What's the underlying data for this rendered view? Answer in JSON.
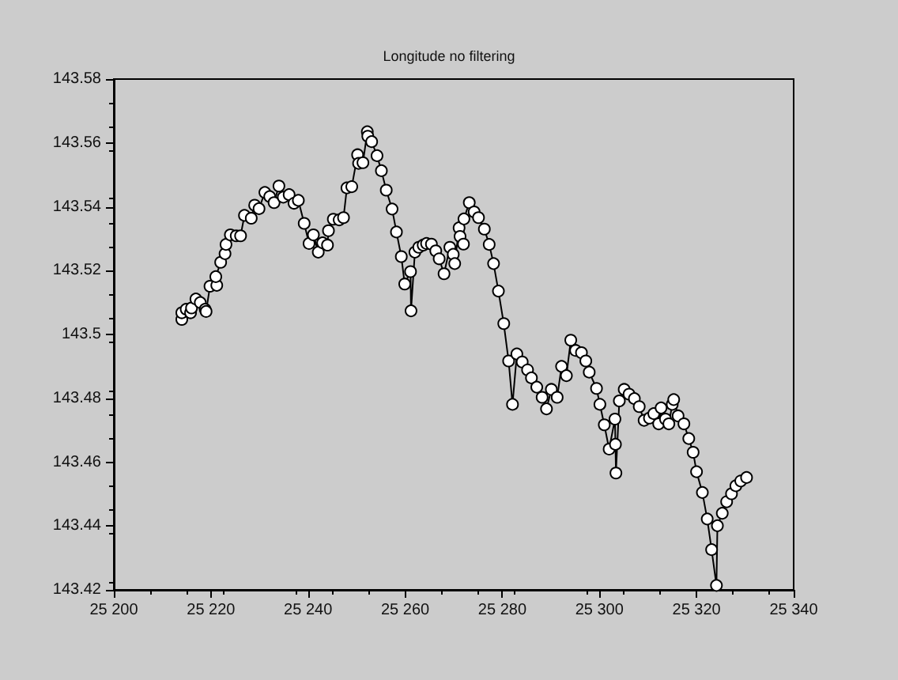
{
  "chart_data": {
    "type": "line",
    "title": "Longitude no filtering",
    "xlim": [
      25200,
      25340
    ],
    "xticks": [
      {
        "value": 25200,
        "label": "25 200"
      },
      {
        "value": 25220,
        "label": "25 220"
      },
      {
        "value": 25240,
        "label": "25 240"
      },
      {
        "value": 25260,
        "label": "25 260"
      },
      {
        "value": 25280,
        "label": "25 280"
      },
      {
        "value": 25300,
        "label": "25 300"
      },
      {
        "value": 25320,
        "label": "25 320"
      },
      {
        "value": 25340,
        "label": "25 340"
      }
    ],
    "ylim": [
      143.42,
      143.58
    ],
    "yticks": [
      143.42,
      143.44,
      143.46,
      143.48,
      143.5,
      143.52,
      143.54,
      143.56,
      143.58
    ],
    "grid": false,
    "marker": "circle",
    "line_style": "solid",
    "series": [
      {
        "color": "#000000",
        "x": [
          25214.0,
          25214.0,
          25214.9,
          25215.8,
          25216.0,
          25216.9,
          25217.8,
          25218.8,
          25219.0,
          25219.8,
          25221.2,
          25221.0,
          25222.0,
          25222.9,
          25223.1,
          25224.0,
          25225.2,
          25226.1,
          25226.9,
          25228.3,
          25229.0,
          25229.9,
          25231.1,
          25232.1,
          25233.0,
          25234.0,
          25234.9,
          25236.1,
          25237.1,
          25238.0,
          25239.2,
          25240.2,
          25241.1,
          25242.1,
          25243.0,
          25244.0,
          25244.2,
          25245.2,
          25246.4,
          25247.3,
          25248.0,
          25249.0,
          25250.2,
          25250.4,
          25251.3,
          25252.2,
          25252.3,
          25253.1,
          25254.2,
          25255.1,
          25256.1,
          25257.3,
          25258.2,
          25259.2,
          25259.9,
          25261.1,
          25261.2,
          25262.0,
          25262.8,
          25263.7,
          25264.4,
          25265.4,
          25266.3,
          25267.0,
          25268.0,
          25269.2,
          25269.9,
          25270.2,
          25271.1,
          25271.3,
          25272.0,
          25272.1,
          25273.2,
          25274.2,
          25275.1,
          25276.3,
          25277.3,
          25278.2,
          25279.2,
          25280.3,
          25281.3,
          25282.1,
          25283.0,
          25284.1,
          25285.2,
          25286.0,
          25287.1,
          25288.2,
          25289.1,
          25290.1,
          25291.3,
          25292.2,
          25293.2,
          25294.1,
          25295.1,
          25296.3,
          25297.2,
          25297.9,
          25299.4,
          25300.1,
          25301.0,
          25302.0,
          25303.2,
          25303.3,
          25303.4,
          25304.1,
          25305.1,
          25306.1,
          25307.2,
          25308.2,
          25309.2,
          25310.3,
          25311.2,
          25312.2,
          25312.7,
          25313.6,
          25314.3,
          25315.0,
          25315.3,
          25316.2,
          25317.4,
          25318.4,
          25319.3,
          25320.0,
          25321.2,
          25322.2,
          25323.1,
          25324.1,
          25324.3,
          25325.3,
          25326.2,
          25327.2,
          25328.1,
          25329.1,
          25330.3
        ],
        "values": [
          143.5047,
          143.5068,
          143.5079,
          143.5068,
          143.5083,
          143.5111,
          143.51,
          143.5079,
          143.5072,
          143.5151,
          143.5154,
          143.5181,
          143.5226,
          143.5253,
          143.5282,
          143.5312,
          143.5309,
          143.5309,
          143.5373,
          143.5364,
          143.5405,
          143.5394,
          143.5445,
          143.5432,
          143.5413,
          143.5465,
          143.543,
          143.5438,
          143.5411,
          143.542,
          143.5348,
          143.5285,
          143.5312,
          143.5258,
          143.5287,
          143.528,
          143.5325,
          143.5361,
          143.5359,
          143.5366,
          143.5459,
          143.5463,
          143.5563,
          143.5536,
          143.5538,
          143.5635,
          143.5621,
          143.5604,
          143.556,
          143.5513,
          143.5452,
          143.5393,
          143.5321,
          143.5244,
          143.5158,
          143.5197,
          143.5074,
          143.5258,
          143.5273,
          143.528,
          143.5285,
          143.5283,
          143.5262,
          143.5237,
          143.519,
          143.5273,
          143.5251,
          143.5222,
          143.5334,
          143.5307,
          143.5283,
          143.5362,
          143.5413,
          143.5384,
          143.5366,
          143.533,
          143.5282,
          143.5222,
          143.5136,
          143.5034,
          143.4917,
          143.4781,
          143.4939,
          143.4914,
          143.4889,
          143.4864,
          143.4835,
          143.4803,
          143.4767,
          143.4828,
          143.4803,
          143.49,
          143.4871,
          143.4982,
          143.495,
          143.4943,
          143.4917,
          143.4882,
          143.4831,
          143.4781,
          143.4717,
          143.4641,
          143.4735,
          143.4656,
          143.4566,
          143.4792,
          143.4828,
          143.4813,
          143.4799,
          143.4774,
          143.4731,
          143.4738,
          143.4752,
          143.472,
          143.477,
          143.4735,
          143.472,
          143.4781,
          143.4796,
          143.4745,
          143.472,
          143.4674,
          143.4631,
          143.457,
          143.4505,
          143.4422,
          143.4326,
          143.4214,
          143.4401,
          143.444,
          143.4476,
          143.4501,
          143.4526,
          143.4541,
          143.4552
        ]
      }
    ]
  }
}
